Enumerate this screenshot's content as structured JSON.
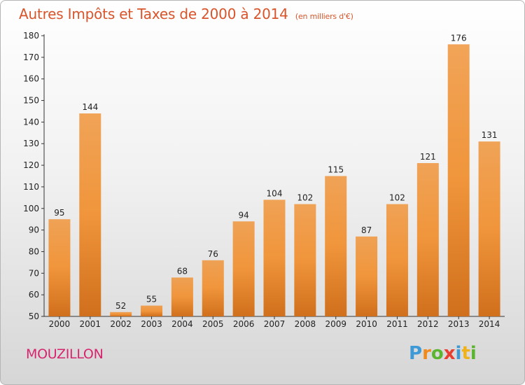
{
  "chart_data": {
    "type": "bar",
    "title": "Autres Impôts et Taxes de 2000 à 2014",
    "unit_label": "(en milliers d'€)",
    "categories": [
      "2000",
      "2001",
      "2002",
      "2003",
      "2004",
      "2005",
      "2006",
      "2007",
      "2008",
      "2009",
      "2010",
      "2011",
      "2012",
      "2013",
      "2014"
    ],
    "values": [
      95,
      144,
      52,
      55,
      68,
      76,
      94,
      104,
      102,
      115,
      87,
      102,
      121,
      176,
      131
    ],
    "ylim": [
      50,
      180
    ],
    "yticks": [
      50,
      60,
      70,
      80,
      90,
      100,
      110,
      120,
      130,
      140,
      150,
      160,
      170,
      180
    ],
    "grid": false,
    "bar_color": "#f0953b",
    "bar_color_dark": "#d06f1c"
  },
  "commune": "MOUZILLON",
  "logo": {
    "letters": [
      "P",
      "r",
      "o",
      "x",
      "i",
      "t",
      "i"
    ],
    "colors": [
      "#3e9ad6",
      "#f08a1c",
      "#5cb531",
      "#e83d2f",
      "#3e9ad6",
      "#f0b21c",
      "#5cb531"
    ]
  }
}
